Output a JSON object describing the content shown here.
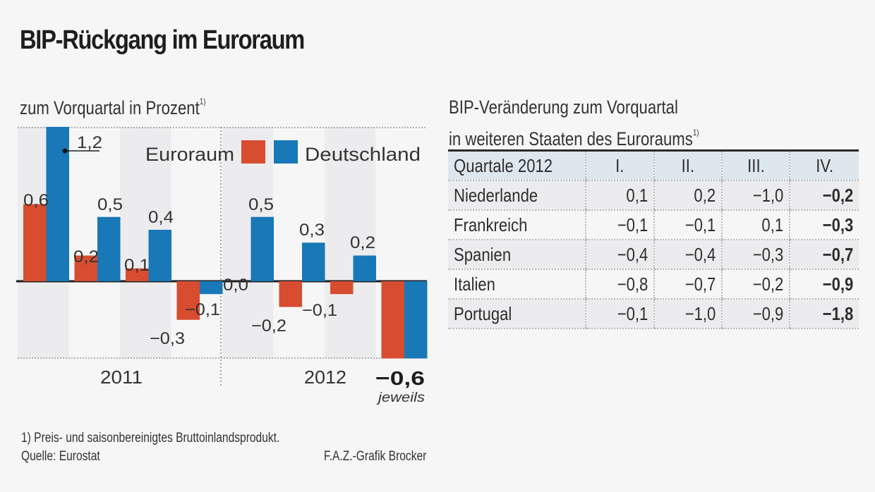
{
  "title": "BIP-Rückgang im Euroraum",
  "subtitle": "zum Vorquartal in Prozent",
  "footnote_marker": "1)",
  "colors": {
    "euroraum": "#d84c2f",
    "deutschland": "#1878b8",
    "band": "#ececee",
    "axis": "#1e1e1e"
  },
  "chart_data": {
    "type": "bar",
    "title": "BIP-Rückgang im Euroraum",
    "subtitle": "zum Vorquartal in Prozent",
    "xlabel": "",
    "ylabel": "Prozent",
    "ylim": [
      -0.6,
      1.2
    ],
    "grid": true,
    "legend_position": "top-right",
    "categories": [
      "2011 Q1",
      "2011 Q2",
      "2011 Q3",
      "2011 Q4",
      "2012 Q1",
      "2012 Q2",
      "2012 Q3",
      "2012 Q4"
    ],
    "year_labels": [
      "2011",
      "2012"
    ],
    "series": [
      {
        "name": "Euroraum",
        "values": [
          0.6,
          0.2,
          0.1,
          -0.3,
          0.0,
          -0.2,
          -0.1,
          -0.6
        ],
        "labels": [
          "0,6",
          "0,2",
          "0,1",
          "−0,3",
          "0,0",
          "−0,2",
          "−0,1",
          ""
        ]
      },
      {
        "name": "Deutschland",
        "values": [
          1.2,
          0.5,
          0.4,
          -0.1,
          0.5,
          0.3,
          0.2,
          -0.6
        ],
        "labels": [
          "1,2",
          "0,5",
          "0,4",
          "−0,1",
          "0,5",
          "0,3",
          "0,2",
          ""
        ]
      }
    ],
    "annotations": [
      {
        "text": "−0,6",
        "note": "jeweils",
        "refers_to": "2012 Q4"
      }
    ]
  },
  "table": {
    "title_line1": "BIP-Veränderung zum Vorquartal",
    "title_line2": "in weiteren Staaten des Euroraums",
    "headers": [
      "Quartale 2012",
      "I.",
      "II.",
      "III.",
      "IV."
    ],
    "rows": [
      {
        "country": "Niederlande",
        "values": [
          "0,1",
          "0,2",
          "−1,0",
          "−0,2"
        ]
      },
      {
        "country": "Frankreich",
        "values": [
          "−0,1",
          "−0,1",
          "0,1",
          "−0,3"
        ]
      },
      {
        "country": "Spanien",
        "values": [
          "−0,4",
          "−0,4",
          "−0,3",
          "−0,7"
        ]
      },
      {
        "country": "Italien",
        "values": [
          "−0,8",
          "−0,7",
          "−0,2",
          "−0,9"
        ]
      },
      {
        "country": "Portugal",
        "values": [
          "−0,1",
          "−1,0",
          "−0,9",
          "−1,8"
        ]
      }
    ]
  },
  "footer": {
    "footnote": "1) Preis- und saisonbereinigtes Bruttoinlandsprodukt.",
    "source": "Quelle: Eurostat",
    "credit": "F.A.Z.-Grafik Brocker"
  }
}
